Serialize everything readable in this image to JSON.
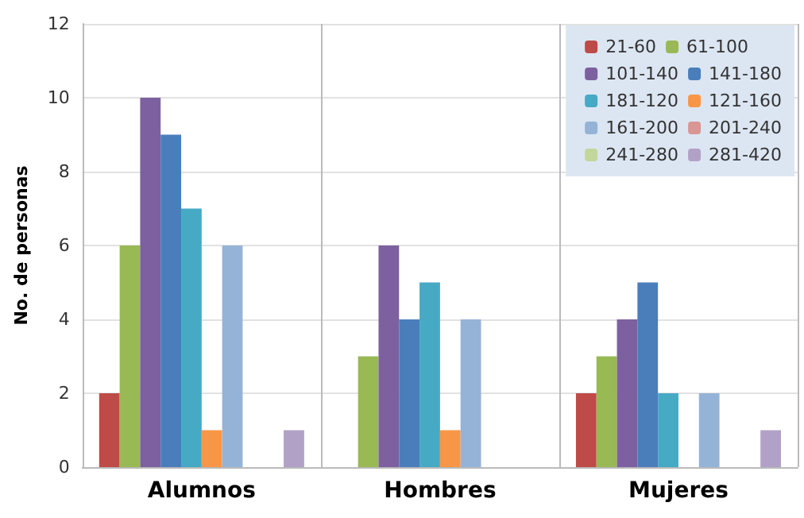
{
  "chart_data": {
    "type": "bar",
    "ylabel": "No. de personas",
    "categories": [
      "Alumnos",
      "Hombres",
      "Mujeres"
    ],
    "series": [
      {
        "name": "21-60",
        "color": "#be4b48",
        "values": [
          2,
          0,
          2
        ]
      },
      {
        "name": "61-100",
        "color": "#98b954",
        "values": [
          6,
          3,
          3
        ]
      },
      {
        "name": "101-140",
        "color": "#7d60a0",
        "values": [
          10,
          6,
          4
        ]
      },
      {
        "name": "141-180",
        "color": "#4a7ebb",
        "values": [
          9,
          4,
          5
        ]
      },
      {
        "name": "181-120",
        "color": "#46aac5",
        "values": [
          7,
          5,
          2
        ]
      },
      {
        "name": "121-160",
        "color": "#f79646",
        "values": [
          1,
          1,
          0
        ]
      },
      {
        "name": "161-200",
        "color": "#95b3d7",
        "values": [
          6,
          4,
          2
        ]
      },
      {
        "name": "201-240",
        "color": "#d99694",
        "values": [
          0,
          0,
          0
        ]
      },
      {
        "name": "241-280",
        "color": "#c3d69b",
        "values": [
          0,
          0,
          0
        ]
      },
      {
        "name": "281-420",
        "color": "#b2a1c7",
        "values": [
          1,
          0,
          1
        ]
      }
    ],
    "ylim": [
      0,
      12
    ],
    "yticks": [
      0,
      2,
      4,
      6,
      8,
      10,
      12
    ],
    "grid": true,
    "legend": "top right"
  }
}
